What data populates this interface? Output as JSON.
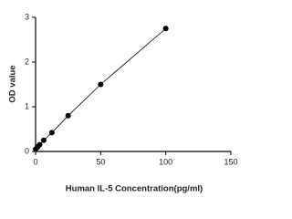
{
  "chart_data": {
    "type": "scatter",
    "x_label": "Human IL-5 Concentration(pg/ml)",
    "y_label": "OD value",
    "x": [
      0,
      1.56,
      3.125,
      6.25,
      12.5,
      25,
      50,
      100
    ],
    "values": [
      0.05,
      0.1,
      0.15,
      0.25,
      0.42,
      0.8,
      1.5,
      2.75
    ],
    "color": "#000000",
    "connect": true,
    "xlim": [
      0,
      150
    ],
    "xticks": [
      0,
      50,
      100,
      150
    ],
    "ylim": [
      0,
      3
    ],
    "yticks": [
      0,
      1,
      2,
      3
    ]
  }
}
